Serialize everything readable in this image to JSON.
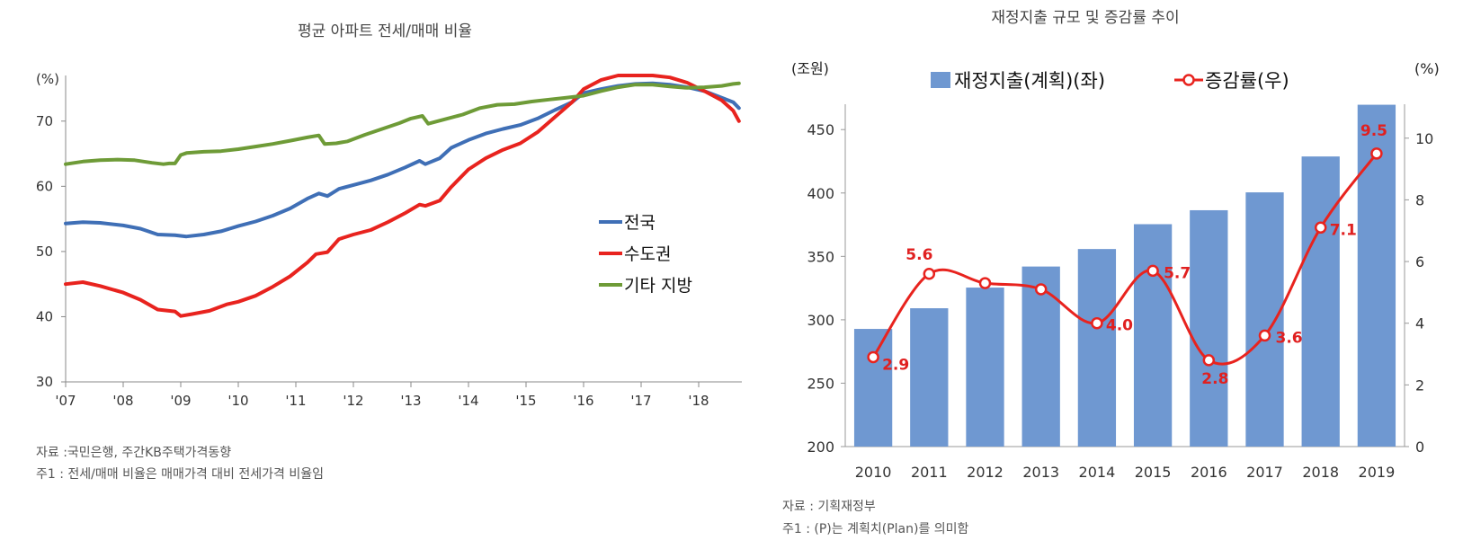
{
  "chart_data": [
    {
      "type": "line",
      "title": "평균 아파트 전세/매매 비율",
      "unit_label": "(%)",
      "ylim": [
        30,
        77
      ],
      "yticks": [
        "30",
        "40",
        "50",
        "60",
        "70"
      ],
      "x_tick_labels": [
        "'07",
        "'08",
        "'09",
        "'10",
        "'11",
        "'12",
        "'13",
        "'14",
        "'15",
        "'16",
        "'17",
        "'18"
      ],
      "x_range": [
        2007.0,
        2018.75
      ],
      "legend": [
        "전국",
        "수도권",
        "기타 지방"
      ],
      "series": [
        {
          "name": "전국",
          "color": "#3f6fb6",
          "x": [
            2007.0,
            2007.3,
            2007.6,
            2008.0,
            2008.3,
            2008.6,
            2008.9,
            2009.1,
            2009.4,
            2009.7,
            2010.0,
            2010.3,
            2010.6,
            2010.9,
            2011.2,
            2011.4,
            2011.55,
            2011.75,
            2012.0,
            2012.3,
            2012.6,
            2012.9,
            2013.15,
            2013.25,
            2013.5,
            2013.7,
            2014.0,
            2014.3,
            2014.6,
            2014.9,
            2015.2,
            2015.5,
            2015.8,
            2016.0,
            2016.3,
            2016.6,
            2016.9,
            2017.2,
            2017.5,
            2017.8,
            2018.1,
            2018.4,
            2018.6,
            2018.7
          ],
          "values": [
            54.3,
            54.5,
            54.4,
            54.0,
            53.5,
            52.6,
            52.5,
            52.3,
            52.6,
            53.1,
            53.9,
            54.6,
            55.5,
            56.6,
            58.1,
            58.9,
            58.5,
            59.6,
            60.2,
            60.9,
            61.8,
            62.9,
            63.9,
            63.4,
            64.3,
            65.9,
            67.1,
            68.1,
            68.8,
            69.4,
            70.4,
            71.7,
            72.9,
            74.3,
            74.9,
            75.4,
            75.7,
            75.8,
            75.6,
            75.2,
            74.6,
            73.6,
            72.9,
            72.0
          ]
        },
        {
          "name": "수도권",
          "color": "#e8231e",
          "x": [
            2007.0,
            2007.3,
            2007.6,
            2008.0,
            2008.3,
            2008.6,
            2008.9,
            2009.0,
            2009.2,
            2009.5,
            2009.8,
            2010.0,
            2010.3,
            2010.6,
            2010.9,
            2011.2,
            2011.35,
            2011.55,
            2011.75,
            2012.0,
            2012.3,
            2012.6,
            2012.9,
            2013.15,
            2013.25,
            2013.5,
            2013.7,
            2014.0,
            2014.3,
            2014.6,
            2014.9,
            2015.2,
            2015.5,
            2015.8,
            2016.0,
            2016.3,
            2016.6,
            2016.9,
            2017.2,
            2017.5,
            2017.8,
            2018.1,
            2018.4,
            2018.6,
            2018.7
          ],
          "values": [
            45.0,
            45.3,
            44.7,
            43.7,
            42.6,
            41.1,
            40.8,
            40.1,
            40.4,
            40.9,
            41.9,
            42.3,
            43.2,
            44.6,
            46.2,
            48.3,
            49.6,
            49.9,
            51.9,
            52.6,
            53.3,
            54.5,
            55.9,
            57.2,
            57.0,
            57.8,
            59.9,
            62.6,
            64.3,
            65.6,
            66.6,
            68.3,
            70.6,
            72.9,
            74.9,
            76.3,
            77.0,
            77.0,
            77.0,
            76.7,
            75.9,
            74.6,
            73.2,
            71.6,
            70.0
          ]
        },
        {
          "name": "기타 지방",
          "color": "#6e9b37",
          "x": [
            2007.0,
            2007.3,
            2007.6,
            2007.9,
            2008.2,
            2008.5,
            2008.7,
            2008.8,
            2008.9,
            2009.0,
            2009.1,
            2009.4,
            2009.7,
            2010.0,
            2010.3,
            2010.6,
            2010.9,
            2011.2,
            2011.4,
            2011.5,
            2011.7,
            2011.9,
            2012.2,
            2012.5,
            2012.8,
            2013.0,
            2013.2,
            2013.3,
            2013.6,
            2013.9,
            2014.2,
            2014.5,
            2014.8,
            2015.1,
            2015.4,
            2015.7,
            2016.0,
            2016.3,
            2016.6,
            2016.9,
            2017.2,
            2017.5,
            2017.8,
            2018.1,
            2018.4,
            2018.6,
            2018.7
          ],
          "values": [
            63.4,
            63.8,
            64.0,
            64.1,
            64.0,
            63.6,
            63.4,
            63.5,
            63.5,
            64.8,
            65.1,
            65.3,
            65.4,
            65.7,
            66.1,
            66.5,
            67.0,
            67.5,
            67.8,
            66.5,
            66.6,
            66.9,
            67.9,
            68.8,
            69.7,
            70.4,
            70.8,
            69.6,
            70.3,
            71.0,
            72.0,
            72.5,
            72.6,
            73.0,
            73.3,
            73.6,
            73.9,
            74.6,
            75.2,
            75.6,
            75.6,
            75.3,
            75.1,
            75.2,
            75.4,
            75.7,
            75.8
          ]
        }
      ],
      "notes": [
        "자료 :국민은행, 주간KB주택가격동향",
        "주1 : 전세/매매 비율은 매매가격 대비 전세가격 비율임"
      ]
    },
    {
      "type": "bar+line",
      "title": "재정지출 규모 및 증감률 추이",
      "left_unit": "(조원)",
      "right_unit": "(%)",
      "categories": [
        "2010",
        "2011",
        "2012",
        "2013",
        "2014",
        "2015",
        "2016",
        "2017",
        "2018",
        "2019"
      ],
      "left_ylim": [
        200,
        470
      ],
      "left_yticks": [
        "200",
        "250",
        "300",
        "350",
        "400",
        "450"
      ],
      "right_ylim": [
        0,
        11.1
      ],
      "right_yticks": [
        "0",
        "2",
        "4",
        "6",
        "8",
        "10"
      ],
      "series": [
        {
          "name": "재정지출(계획)(좌)",
          "color": "#6f98d1",
          "axis": "left",
          "values": [
            292.8,
            309.1,
            325.4,
            342.0,
            355.8,
            375.4,
            386.4,
            400.5,
            428.8,
            469.6
          ]
        },
        {
          "name": "증감률(우)",
          "color": "#e8231e",
          "axis": "right",
          "values": [
            2.9,
            5.6,
            5.3,
            5.1,
            4.0,
            5.7,
            2.8,
            3.6,
            7.1,
            9.5
          ],
          "labels": [
            "2.9",
            "5.6",
            "",
            "",
            "4.0",
            "5.7",
            "2.8",
            "3.6",
            "7.1",
            "9.5"
          ]
        }
      ],
      "notes": [
        "자료 : 기획재정부",
        "주1 : (P)는 계획치(Plan)를 의미함"
      ]
    }
  ]
}
